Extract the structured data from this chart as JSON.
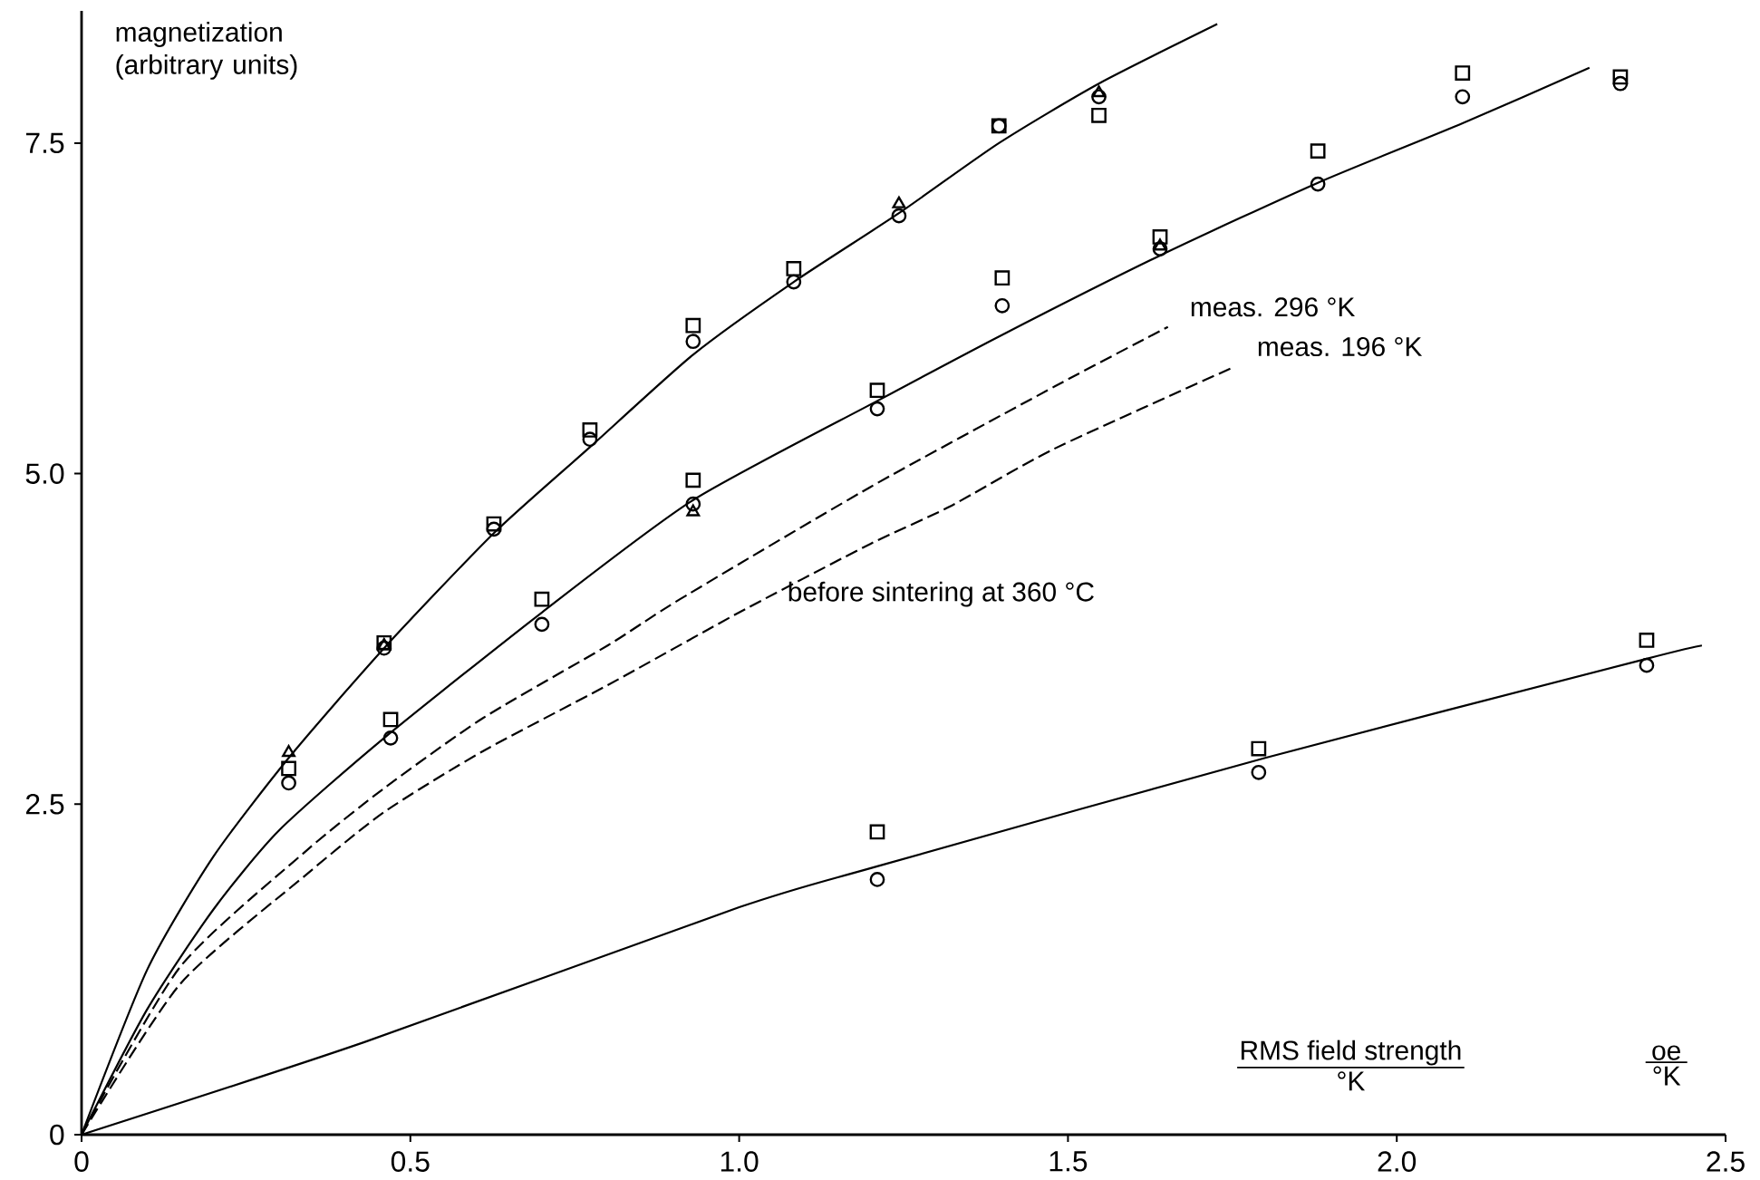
{
  "chart_data": {
    "type": "line",
    "xlabel": "RMS field strength",
    "ylabel": "magnetization (arbitrary units)",
    "xlim": [
      0,
      2.5
    ],
    "ylim": [
      0,
      8.5
    ],
    "xticks": [
      0,
      0.5,
      {
        "value": 1,
        "label": "1.0"
      },
      1.5,
      {
        "value": 2,
        "label": "2.0"
      },
      2.5
    ],
    "yticks": [
      0,
      2.5,
      {
        "value": 5,
        "label": "5.0"
      },
      7.5
    ],
    "series": [
      {
        "color": "#000000",
        "line_style": "solid",
        "marker": "none",
        "x": [
          0,
          0.1,
          0.2,
          0.315,
          0.46,
          0.627,
          0.773,
          0.93,
          1.083,
          1.243,
          1.395,
          1.547,
          1.727
        ],
        "values": [
          0,
          1.25,
          2.1,
          2.85,
          3.68,
          4.55,
          5.2,
          5.9,
          6.45,
          6.97,
          7.5,
          7.95,
          8.4
        ]
      },
      {
        "color": "#000000",
        "line_style": "solid",
        "marker": "none",
        "x": [
          0,
          0.1,
          0.2,
          0.3,
          0.46,
          0.7,
          0.93,
          1.21,
          1.4,
          1.64,
          1.88,
          2.1,
          2.293
        ],
        "values": [
          0,
          0.95,
          1.7,
          2.3,
          3.0,
          3.95,
          4.8,
          5.55,
          6.05,
          6.65,
          7.2,
          7.65,
          8.07
        ]
      },
      {
        "color": "#000000",
        "line_style": "solid",
        "marker": "none",
        "x": [
          0,
          0.43,
          1.0,
          1.21,
          1.8,
          2.38,
          2.464
        ],
        "values": [
          0,
          0.7,
          1.72,
          2.03,
          2.85,
          3.6,
          3.7
        ]
      },
      {
        "color": "#000000",
        "line_style": "dashed",
        "marker": "none",
        "x": [
          0,
          0.15,
          0.34,
          0.46,
          0.61,
          0.8,
          0.91,
          1.2,
          1.48,
          1.652
        ],
        "values": [
          0,
          1.27,
          2.14,
          2.62,
          3.15,
          3.7,
          4.05,
          4.9,
          5.66,
          6.11
        ]
      },
      {
        "color": "#000000",
        "line_style": "dashed",
        "marker": "none",
        "x": [
          0,
          0.15,
          0.34,
          0.46,
          0.61,
          0.8,
          1.0,
          1.2,
          1.32,
          1.48,
          1.754
        ],
        "values": [
          0,
          1.14,
          1.96,
          2.44,
          2.9,
          3.4,
          3.95,
          4.47,
          4.75,
          5.19,
          5.81
        ]
      },
      {
        "type": "scatter",
        "color": "#000000",
        "marker": "circle",
        "x": [
          0.315,
          0.46,
          0.627,
          0.773,
          0.93,
          1.083,
          1.243,
          1.395,
          1.547,
          0.47,
          0.7,
          0.93,
          1.21,
          1.4,
          1.64,
          1.88,
          2.1,
          2.34,
          1.21,
          1.79,
          2.38
        ],
        "values": [
          2.66,
          3.68,
          4.58,
          5.26,
          6.0,
          6.45,
          6.95,
          7.63,
          7.85,
          3.0,
          3.86,
          4.77,
          5.49,
          6.27,
          6.7,
          7.19,
          7.85,
          7.95,
          1.93,
          2.74,
          3.55
        ]
      },
      {
        "type": "scatter",
        "color": "#000000",
        "marker": "square",
        "x": [
          0.315,
          0.46,
          0.627,
          0.773,
          0.93,
          1.083,
          1.395,
          1.547,
          0.47,
          0.7,
          0.93,
          1.21,
          1.4,
          1.64,
          1.88,
          2.1,
          2.34,
          1.21,
          1.79,
          2.38
        ],
        "values": [
          2.77,
          3.72,
          4.62,
          5.33,
          6.12,
          6.55,
          7.63,
          7.71,
          3.14,
          4.05,
          4.95,
          5.63,
          6.48,
          6.79,
          7.44,
          8.03,
          8.0,
          2.29,
          2.92,
          3.74
        ]
      },
      {
        "type": "scatter",
        "color": "#000000",
        "marker": "triangle",
        "x": [
          0.315,
          0.46,
          1.243,
          0.93,
          1.547,
          1.64
        ],
        "values": [
          2.89,
          3.7,
          7.04,
          4.71,
          7.88,
          6.72
        ]
      }
    ],
    "annotations": [
      {
        "text": "meas. 296 °K",
        "x": 1.652,
        "y": 6.11
      },
      {
        "text": "meas. 196 °K",
        "x": 1.754,
        "y": 5.81
      },
      {
        "text": "before sintering at 360 °C",
        "x": 1.22,
        "y": 4.6
      },
      "°K",
      "oe",
      "°K"
    ]
  }
}
